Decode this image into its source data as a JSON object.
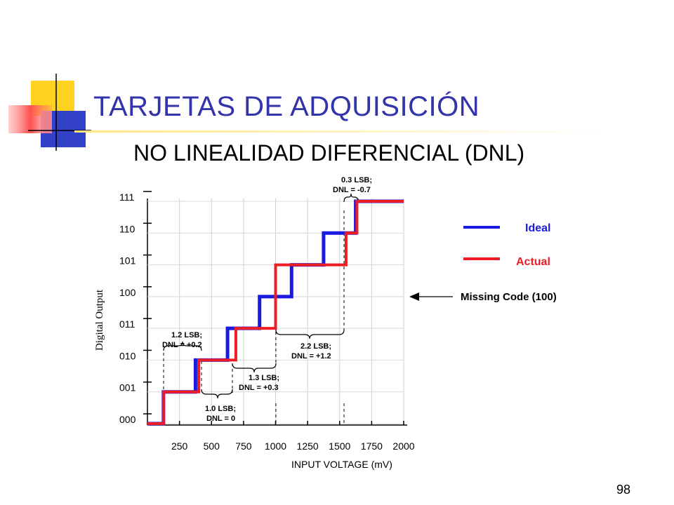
{
  "slide": {
    "title": "TARJETAS DE ADQUISICIÓN",
    "subtitle": "NO LINEALIDAD DIFERENCIAL (DNL)",
    "page_number": "98"
  },
  "colors": {
    "title": "#3333aa",
    "ideal": "#1a1ae0",
    "actual": "#ee1c25",
    "deco_yellow": "#ffd21f",
    "deco_blue": "#3340c8",
    "deco_red": "#ff4f4f"
  },
  "chart_data": {
    "type": "line",
    "xlabel": "INPUT VOLTAGE (mV)",
    "ylabel": "Digital Output",
    "x_ticks": [
      "250",
      "500",
      "750",
      "1000",
      "1250",
      "1500",
      "1750",
      "2000"
    ],
    "y_ticks": [
      "000",
      "001",
      "010",
      "011",
      "100",
      "101",
      "110",
      "111"
    ],
    "xlim": [
      0,
      2000
    ],
    "ylim": [
      0,
      7
    ],
    "series": [
      {
        "name": "Ideal",
        "points": [
          [
            0,
            0
          ],
          [
            125,
            0
          ],
          [
            125,
            1
          ],
          [
            375,
            1
          ],
          [
            375,
            2
          ],
          [
            625,
            2
          ],
          [
            625,
            3
          ],
          [
            875,
            3
          ],
          [
            875,
            4
          ],
          [
            1125,
            4
          ],
          [
            1125,
            5
          ],
          [
            1375,
            5
          ],
          [
            1375,
            6
          ],
          [
            1625,
            6
          ],
          [
            1625,
            7
          ],
          [
            2000,
            7
          ]
        ]
      },
      {
        "name": "Actual",
        "points": [
          [
            0,
            0
          ],
          [
            125,
            0
          ],
          [
            125,
            1
          ],
          [
            400,
            1
          ],
          [
            400,
            2
          ],
          [
            690,
            2
          ],
          [
            690,
            3
          ],
          [
            1000,
            3
          ],
          [
            1000,
            5
          ],
          [
            1550,
            5
          ],
          [
            1550,
            6
          ],
          [
            1635,
            6
          ],
          [
            1635,
            7
          ],
          [
            2000,
            7
          ]
        ]
      }
    ],
    "legend": [
      {
        "name": "Ideal"
      },
      {
        "name": "Actual"
      }
    ],
    "legend_placement": "right",
    "annotations": [
      {
        "line1": "1.2 LSB;",
        "line2": "DNL = +0.2"
      },
      {
        "line1": "1.0 LSB;",
        "line2": "DNL = 0"
      },
      {
        "line1": "1.3 LSB;",
        "line2": "DNL = +0.3"
      },
      {
        "line1": "2.2 LSB;",
        "line2": "DNL = +1.2"
      },
      {
        "line1": "0.3 LSB;",
        "line2": "DNL = -0.7"
      }
    ],
    "missing_code_label": "Missing Code (100)"
  }
}
